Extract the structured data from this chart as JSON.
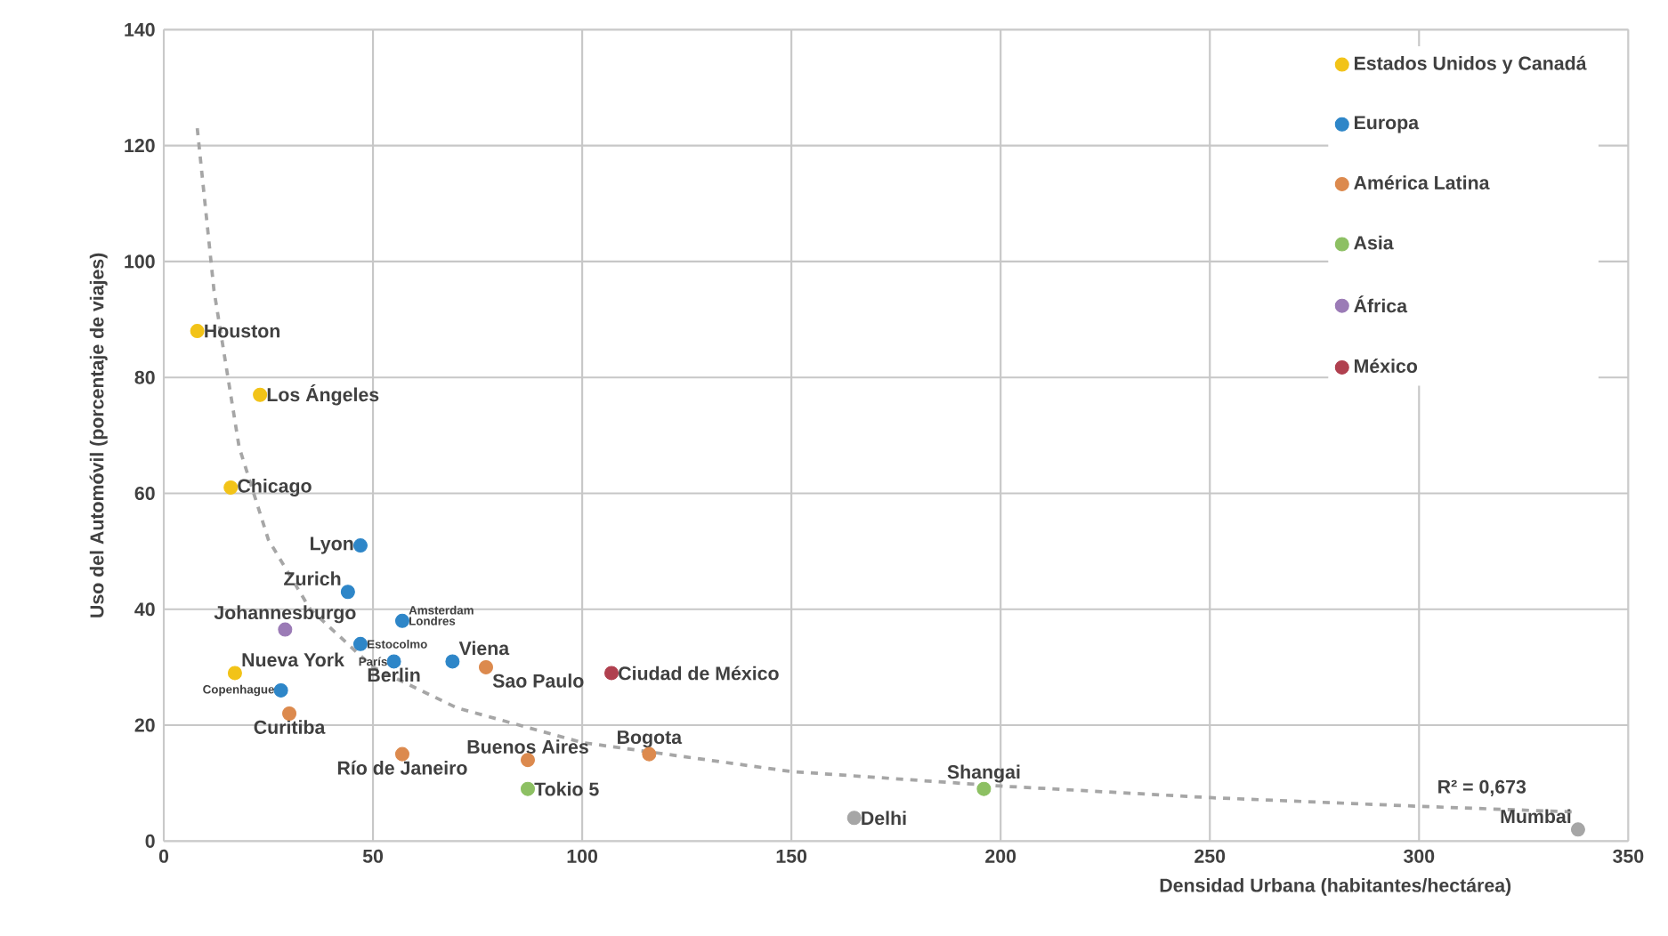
{
  "chart_data": {
    "type": "scatter",
    "xlabel": "Densidad Urbana  (habitantes/hectárea)",
    "ylabel": "Uso del Automóvil (porcentaje de viajes)",
    "xlim": [
      0,
      350
    ],
    "ylim": [
      0,
      140
    ],
    "xticks": [
      0,
      50,
      100,
      150,
      200,
      250,
      300,
      350
    ],
    "yticks": [
      0,
      20,
      40,
      60,
      80,
      100,
      120,
      140
    ],
    "grid": true,
    "legend": "top right",
    "series": [
      {
        "name": "Estados Unidos y Canadá",
        "color": "#f2c318",
        "marker": "circle",
        "x": [
          8,
          23,
          16,
          17
        ],
        "values": [
          88,
          77,
          61,
          29
        ]
      },
      {
        "name": "Europa",
        "color": "#2e86c8",
        "marker": "circle",
        "x": [
          47,
          44,
          57,
          47,
          55,
          69,
          28
        ],
        "values": [
          51,
          43,
          38,
          34,
          31,
          31,
          26
        ]
      },
      {
        "name": "América Latina",
        "color": "#dc8a4e",
        "marker": "circle",
        "x": [
          30,
          77,
          57,
          87,
          116
        ],
        "values": [
          22,
          30,
          15,
          14,
          15
        ]
      },
      {
        "name": "Asia",
        "color": "#8dc063",
        "marker": "circle",
        "x": [
          87,
          196
        ],
        "values": [
          9,
          9
        ]
      },
      {
        "name": "África",
        "color": "#9b7bb6",
        "marker": "circle",
        "x": [
          29
        ],
        "values": [
          36.5
        ]
      },
      {
        "name": "México",
        "color": "#b0404f",
        "marker": "circle",
        "x": [
          107
        ],
        "values": [
          29
        ]
      },
      {
        "color": "#a6a6a6",
        "marker": "circle",
        "x": [
          165,
          338
        ],
        "values": [
          4,
          2
        ]
      },
      {
        "type": "line",
        "color": "#a6a6a6",
        "line_style": "dashed",
        "marker": "none",
        "x": [
          8,
          12,
          18,
          25,
          35,
          50,
          70,
          100,
          150,
          200,
          250,
          300,
          338
        ],
        "values": [
          123,
          95,
          68,
          52,
          40,
          30,
          23,
          17,
          12,
          9.5,
          7.5,
          6,
          5
        ]
      }
    ],
    "annotations": [
      {
        "text": "Houston",
        "x": 8,
        "y": 88
      },
      {
        "text": "Los Ángeles",
        "x": 23,
        "y": 77
      },
      {
        "text": "Chicago",
        "x": 16,
        "y": 61
      },
      {
        "text": "Lyon",
        "x": 47,
        "y": 51
      },
      {
        "text": "Zurich",
        "x": 44,
        "y": 43
      },
      {
        "text": "Johannesburgo",
        "x": 29,
        "y": 36.5
      },
      {
        "text": "Nueva York",
        "x": 17,
        "y": 29
      },
      {
        "text": "Copenhague",
        "x": 28,
        "y": 26
      },
      {
        "text": "Curitiba",
        "x": 30,
        "y": 22
      },
      {
        "text": "Amsterdam",
        "x": 57,
        "y": 38
      },
      {
        "text": "Londres",
        "x": 57,
        "y": 38
      },
      {
        "text": "Estocolmo",
        "x": 47,
        "y": 34
      },
      {
        "text": "París",
        "x": 55,
        "y": 31
      },
      {
        "text": "Berlin",
        "x": 55,
        "y": 31
      },
      {
        "text": "Viena",
        "x": 69,
        "y": 31
      },
      {
        "text": "Sao Paulo",
        "x": 77,
        "y": 30
      },
      {
        "text": "Ciudad de México",
        "x": 107,
        "y": 29
      },
      {
        "text": "Río de Janeiro",
        "x": 57,
        "y": 15
      },
      {
        "text": "Buenos Aires",
        "x": 87,
        "y": 14
      },
      {
        "text": "Bogota",
        "x": 116,
        "y": 15
      },
      {
        "text": "Tokio 5",
        "x": 87,
        "y": 9
      },
      {
        "text": "Shangai",
        "x": 196,
        "y": 9
      },
      {
        "text": "Delhi",
        "x": 165,
        "y": 4
      },
      {
        "text": "Mumbai",
        "x": 338,
        "y": 2
      },
      "R² = 0,673"
    ]
  }
}
